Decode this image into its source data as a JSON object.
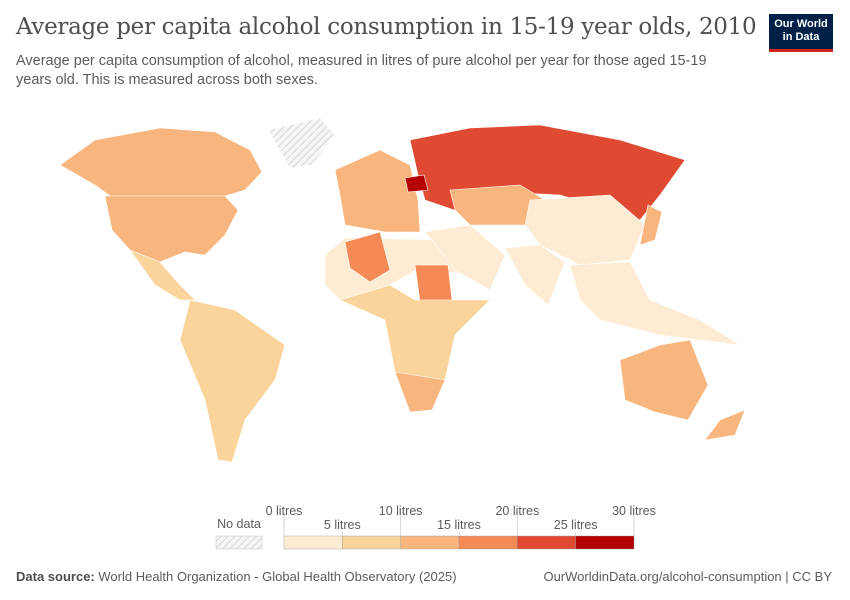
{
  "header": {
    "title": "Average per capita alcohol consumption in 15-19 year olds, 2010",
    "subtitle": "Average per capita consumption of alcohol, measured in litres of pure alcohol per year for those aged 15-19 years old. This is measured across both sexes.",
    "logo": "Our World in Data"
  },
  "chart_data": {
    "type": "choropleth",
    "year": "2010",
    "legend": {
      "no_data_label": "No data",
      "bins": [
        0,
        5,
        10,
        15,
        20,
        25,
        30
      ],
      "tick_labels": [
        "0 litres",
        "5 litres",
        "10 litres",
        "15 litres",
        "20 litres",
        "25 litres",
        "30 litres"
      ],
      "colors": [
        "#fdecd3",
        "#fbd49c",
        "#f8b57d",
        "#f68a56",
        "#e04a33",
        "#b40000"
      ],
      "no_data_color": "#eeeeee"
    },
    "regions": [
      {
        "name": "Canada",
        "value": 12,
        "color": "#f8b57d"
      },
      {
        "name": "United States",
        "value": 12,
        "color": "#f8b57d"
      },
      {
        "name": "Mexico",
        "value": 8,
        "color": "#fbd49c"
      },
      {
        "name": "South America",
        "value": 8,
        "color": "#fbd49c"
      },
      {
        "name": "Greenland",
        "value": null,
        "color": "#eeeeee"
      },
      {
        "name": "Western Europe",
        "value": 13,
        "color": "#f8b57d"
      },
      {
        "name": "Russia",
        "value": 22,
        "color": "#e04a33"
      },
      {
        "name": "Belarus",
        "value": 28,
        "color": "#b40000"
      },
      {
        "name": "Kazakhstan",
        "value": 12,
        "color": "#f8b57d"
      },
      {
        "name": "North Africa",
        "value": 2,
        "color": "#fdecd3"
      },
      {
        "name": "Algeria",
        "value": 17,
        "color": "#f68a56"
      },
      {
        "name": "Sudan",
        "value": 17,
        "color": "#f68a56"
      },
      {
        "name": "Sub-Saharan Africa",
        "value": 7,
        "color": "#fbd49c"
      },
      {
        "name": "South Africa",
        "value": 13,
        "color": "#f8b57d"
      },
      {
        "name": "Middle East",
        "value": 1,
        "color": "#fdecd3"
      },
      {
        "name": "China",
        "value": 4,
        "color": "#fdecd3"
      },
      {
        "name": "India",
        "value": 2,
        "color": "#fdecd3"
      },
      {
        "name": "Southeast Asia",
        "value": 3,
        "color": "#fdecd3"
      },
      {
        "name": "Japan",
        "value": 10,
        "color": "#f8b57d"
      },
      {
        "name": "Australia",
        "value": 13,
        "color": "#f8b57d"
      },
      {
        "name": "New Zealand",
        "value": 13,
        "color": "#f8b57d"
      }
    ]
  },
  "footer": {
    "source_label": "Data source:",
    "source": "World Health Organization - Global Health Observatory (2025)",
    "url": "OurWorldinData.org/alcohol-consumption | CC BY"
  }
}
